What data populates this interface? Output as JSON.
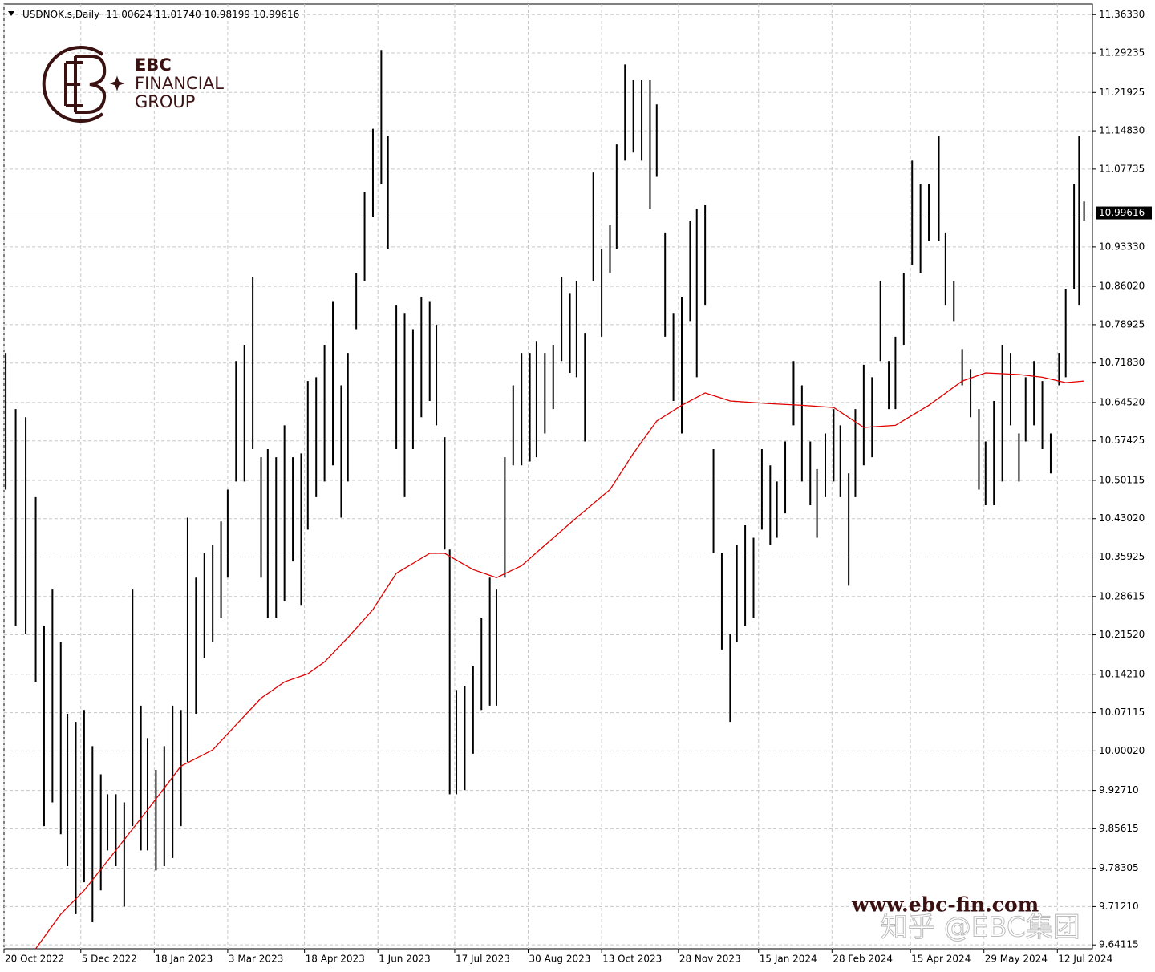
{
  "chart_data": {
    "type": "ohlc",
    "symbol": "USDNOK.s,Daily",
    "header_prices": [
      "11.00624",
      "11.01740",
      "10.98199",
      "10.99616"
    ],
    "current_price": 10.99616,
    "grid": true,
    "bar_color": "#000000",
    "x": [
      "2022-10-21",
      "2022-10-27",
      "2022-11-02",
      "2022-11-08",
      "2022-11-13",
      "2022-11-18",
      "2022-11-23",
      "2022-11-27",
      "2022-12-02",
      "2022-12-07",
      "2022-12-12",
      "2022-12-17",
      "2022-12-21",
      "2022-12-26",
      "2022-12-31",
      "2023-01-05",
      "2023-01-10",
      "2023-01-14",
      "2023-01-19",
      "2023-01-24",
      "2023-01-29",
      "2023-02-03",
      "2023-02-07",
      "2023-02-12",
      "2023-02-17",
      "2023-02-22",
      "2023-02-27",
      "2023-03-03",
      "2023-03-08",
      "2023-03-13",
      "2023-03-18",
      "2023-03-23",
      "2023-03-27",
      "2023-04-01",
      "2023-04-06",
      "2023-04-11",
      "2023-04-16",
      "2023-04-20",
      "2023-04-25",
      "2023-04-30",
      "2023-05-05",
      "2023-05-10",
      "2023-05-14",
      "2023-05-19",
      "2023-05-24",
      "2023-05-29",
      "2023-06-03",
      "2023-06-07",
      "2023-06-12",
      "2023-06-17",
      "2023-06-22",
      "2023-06-27",
      "2023-07-02",
      "2023-07-06",
      "2023-07-11",
      "2023-07-14",
      "2023-07-18",
      "2023-07-23",
      "2023-07-28",
      "2023-08-02",
      "2023-08-07",
      "2023-08-11",
      "2023-08-16",
      "2023-08-21",
      "2023-08-26",
      "2023-08-31",
      "2023-09-04",
      "2023-09-09",
      "2023-09-14",
      "2023-09-19",
      "2023-09-24",
      "2023-09-28",
      "2023-10-03",
      "2023-10-08",
      "2023-10-13",
      "2023-10-18",
      "2023-10-22",
      "2023-10-27",
      "2023-11-01",
      "2023-11-06",
      "2023-11-11",
      "2023-11-15",
      "2023-11-20",
      "2023-11-25",
      "2023-11-30",
      "2023-12-05",
      "2023-12-09",
      "2023-12-14",
      "2023-12-19",
      "2023-12-24",
      "2023-12-29",
      "2024-01-02",
      "2024-01-07",
      "2024-01-12",
      "2024-01-17",
      "2024-01-22",
      "2024-01-26",
      "2024-01-31",
      "2024-02-05",
      "2024-02-10",
      "2024-02-15",
      "2024-02-19",
      "2024-02-24",
      "2024-02-29",
      "2024-03-04",
      "2024-03-09",
      "2024-03-13",
      "2024-03-18",
      "2024-03-23",
      "2024-03-28",
      "2024-04-02",
      "2024-04-06",
      "2024-04-11",
      "2024-04-16",
      "2024-04-21",
      "2024-04-26",
      "2024-05-02",
      "2024-05-06",
      "2024-05-11",
      "2024-05-16",
      "2024-05-21",
      "2024-05-26",
      "2024-05-30",
      "2024-06-04",
      "2024-06-09",
      "2024-06-14",
      "2024-06-19",
      "2024-06-23",
      "2024-06-28",
      "2024-07-03",
      "2024-07-08",
      "2024-07-13",
      "2024-07-17",
      "2024-07-22",
      "2024-07-25",
      "2024-07-28"
    ],
    "high": [
      10.737,
      10.633,
      10.618,
      10.47,
      10.232,
      10.299,
      10.202,
      10.069,
      10.054,
      10.076,
      10.009,
      9.957,
      9.92,
      9.92,
      9.905,
      10.299,
      10.084,
      10.024,
      9.965,
      10.009,
      10.084,
      10.076,
      10.432,
      10.321,
      10.366,
      10.381,
      10.425,
      10.484,
      10.722,
      10.752,
      10.878,
      10.544,
      10.559,
      10.544,
      10.603,
      10.544,
      10.551,
      10.685,
      10.692,
      10.752,
      10.833,
      10.677,
      10.737,
      10.885,
      11.034,
      11.152,
      11.298,
      11.138,
      10.826,
      10.811,
      10.781,
      10.841,
      10.833,
      10.789,
      10.581,
      10.373,
      10.113,
      10.121,
      10.158,
      10.247,
      10.321,
      10.299,
      10.544,
      10.677,
      10.737,
      10.737,
      10.759,
      10.737,
      10.752,
      10.878,
      10.848,
      10.87,
      10.774,
      11.071,
      10.93,
      10.974,
      11.123,
      11.271,
      11.242,
      11.242,
      11.242,
      11.197,
      10.96,
      10.811,
      10.841,
      10.982,
      11.004,
      11.011,
      10.559,
      10.366,
      10.217,
      10.381,
      10.418,
      10.395,
      10.559,
      10.529,
      10.499,
      10.573,
      10.722,
      10.677,
      10.573,
      10.522,
      10.588,
      10.633,
      10.603,
      10.514,
      10.633,
      10.715,
      10.692,
      10.87,
      10.722,
      10.767,
      10.885,
      11.093,
      11.049,
      11.049,
      11.138,
      10.96,
      10.87,
      10.744,
      10.707,
      10.633,
      10.573,
      10.648,
      10.752,
      10.737,
      10.588,
      10.692,
      10.722,
      10.685,
      10.588,
      10.737,
      10.856,
      11.049,
      11.138,
      11.0174
    ],
    "low": [
      10.484,
      10.232,
      10.217,
      10.128,
      9.861,
      9.905,
      9.846,
      9.787,
      9.698,
      9.757,
      9.683,
      9.742,
      9.816,
      9.787,
      9.712,
      9.861,
      9.816,
      9.816,
      9.779,
      9.787,
      9.802,
      9.861,
      9.98,
      10.069,
      10.173,
      10.202,
      10.247,
      10.321,
      10.499,
      10.499,
      10.559,
      10.321,
      10.247,
      10.247,
      10.277,
      10.351,
      10.269,
      10.41,
      10.47,
      10.499,
      10.529,
      10.432,
      10.499,
      10.781,
      10.87,
      10.989,
      11.049,
      10.93,
      10.559,
      10.47,
      10.559,
      10.618,
      10.648,
      10.603,
      10.373,
      9.92,
      9.92,
      9.928,
      9.995,
      10.076,
      10.084,
      10.084,
      10.321,
      10.529,
      10.529,
      10.536,
      10.544,
      10.588,
      10.633,
      10.722,
      10.7,
      10.692,
      10.573,
      10.87,
      10.767,
      10.885,
      10.93,
      11.093,
      11.108,
      11.093,
      11.004,
      11.063,
      10.767,
      10.648,
      10.588,
      10.796,
      10.692,
      10.826,
      10.366,
      10.188,
      10.054,
      10.202,
      10.232,
      10.247,
      10.41,
      10.381,
      10.395,
      10.44,
      10.603,
      10.499,
      10.455,
      10.395,
      10.47,
      10.499,
      10.47,
      10.306,
      10.47,
      10.529,
      10.544,
      10.722,
      10.633,
      10.633,
      10.752,
      10.9,
      10.885,
      10.945,
      10.945,
      10.826,
      10.796,
      10.677,
      10.618,
      10.484,
      10.455,
      10.455,
      10.499,
      10.603,
      10.499,
      10.573,
      10.603,
      10.559,
      10.514,
      10.677,
      10.692,
      10.856,
      10.826,
      10.98199
    ],
    "ma": {
      "color": "#e00000",
      "x": [
        "2022-11-08",
        "2022-11-23",
        "2022-12-07",
        "2022-12-26",
        "2023-01-14",
        "2023-02-03",
        "2023-02-22",
        "2023-03-03",
        "2023-03-23",
        "2023-04-06",
        "2023-04-20",
        "2023-04-30",
        "2023-05-14",
        "2023-05-29",
        "2023-06-12",
        "2023-07-02",
        "2023-07-11",
        "2023-07-28",
        "2023-08-11",
        "2023-08-26",
        "2023-09-09",
        "2023-09-28",
        "2023-10-18",
        "2023-11-01",
        "2023-11-15",
        "2023-11-30",
        "2023-12-14",
        "2023-12-29",
        "2024-01-22",
        "2024-02-10",
        "2024-02-29",
        "2024-03-18",
        "2024-04-06",
        "2024-04-26",
        "2024-05-16",
        "2024-05-30",
        "2024-06-19",
        "2024-07-03",
        "2024-07-17",
        "2024-07-28"
      ],
      "values": [
        9.634,
        9.698,
        9.742,
        9.816,
        9.891,
        9.972,
        10.002,
        10.032,
        10.098,
        10.128,
        10.143,
        10.165,
        10.21,
        10.262,
        10.329,
        10.366,
        10.366,
        10.336,
        10.321,
        10.343,
        10.381,
        10.432,
        10.484,
        10.551,
        10.611,
        10.64,
        10.663,
        10.648,
        10.643,
        10.64,
        10.636,
        10.599,
        10.603,
        10.64,
        10.685,
        10.7,
        10.697,
        10.692,
        10.682,
        10.685
      ]
    },
    "xlim": [
      "2022-10-20",
      "2024-08-02"
    ],
    "xticks": [
      {
        "value": "2022-10-20",
        "label": "20 Oct 2022"
      },
      {
        "value": "2022-12-05",
        "label": "5 Dec 2022"
      },
      {
        "value": "2023-01-18",
        "label": "18 Jan 2023"
      },
      {
        "value": "2023-03-03",
        "label": "3 Mar 2023"
      },
      {
        "value": "2023-04-18",
        "label": "18 Apr 2023"
      },
      {
        "value": "2023-06-01",
        "label": "1 Jun 2023"
      },
      {
        "value": "2023-07-17",
        "label": "17 Jul 2023"
      },
      {
        "value": "2023-08-30",
        "label": "30 Aug 2023"
      },
      {
        "value": "2023-10-13",
        "label": "13 Oct 2023"
      },
      {
        "value": "2023-11-28",
        "label": "28 Nov 2023"
      },
      {
        "value": "2024-01-15",
        "label": "15 Jan 2024"
      },
      {
        "value": "2024-02-28",
        "label": "28 Feb 2024"
      },
      {
        "value": "2024-04-15",
        "label": "15 Apr 2024"
      },
      {
        "value": "2024-05-29",
        "label": "29 May 2024"
      },
      {
        "value": "2024-07-12",
        "label": "12 Jul 2024"
      }
    ],
    "ylim": [
      9.634,
      11.383
    ],
    "yticks": [
      {
        "value": 11.3633,
        "label": "11.36330"
      },
      11.29235,
      11.21925,
      {
        "value": 11.1483,
        "label": "11.14830"
      },
      11.07735,
      {
        "value": 10.9333,
        "label": "10.93330"
      },
      {
        "value": 10.8602,
        "label": "10.86020"
      },
      10.78925,
      {
        "value": 10.7183,
        "label": "10.71830"
      },
      {
        "value": 10.6452,
        "label": "10.64520"
      },
      10.57425,
      10.50115,
      {
        "value": 10.4302,
        "label": "10.43020"
      },
      10.35925,
      10.28615,
      {
        "value": 10.2152,
        "label": "10.21520"
      },
      {
        "value": 10.1421,
        "label": "10.14210"
      },
      10.07115,
      {
        "value": 10.0002,
        "label": "10.00020"
      },
      {
        "value": 9.9271,
        "label": "9.92710"
      },
      9.85615,
      9.78305,
      {
        "value": 9.7121,
        "label": "9.71210"
      },
      9.64115
    ]
  },
  "branding": {
    "logo_line1": "EBC",
    "logo_line2": "FINANCIAL",
    "logo_line3": "GROUP",
    "website": "www.ebc-fin.com",
    "watermark": "知乎 @EBC集团"
  }
}
